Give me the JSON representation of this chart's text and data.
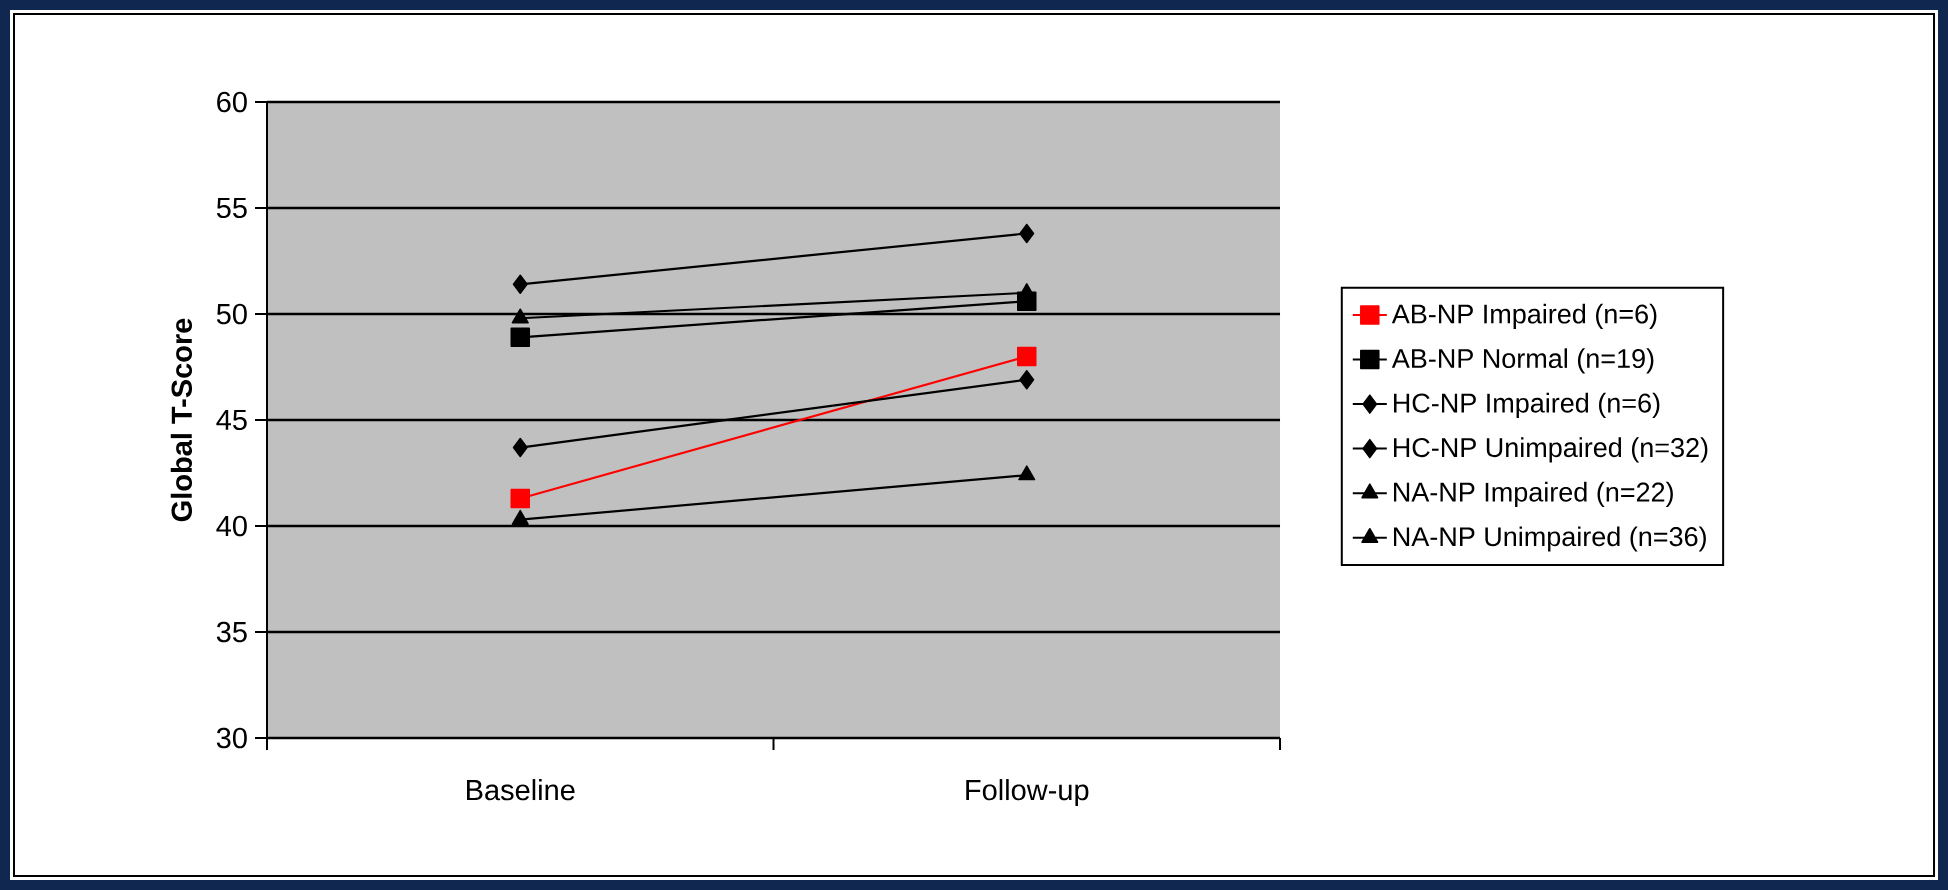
{
  "chart_data": {
    "type": "line",
    "ylabel": "Global T-Score",
    "categories": [
      "Baseline",
      "Follow-up"
    ],
    "series": [
      {
        "name": "AB-NP Impaired (n=6)",
        "color": "#ff0000",
        "marker": "square",
        "values": [
          41.3,
          48.0
        ]
      },
      {
        "name": "AB-NP Normal (n=19)",
        "color": "#000000",
        "marker": "square",
        "values": [
          48.9,
          50.6
        ]
      },
      {
        "name": "HC-NP Impaired (n=6)",
        "color": "#000000",
        "marker": "diamond",
        "values": [
          43.7,
          46.9
        ]
      },
      {
        "name": "HC-NP Unimpaired (n=32)",
        "color": "#000000",
        "marker": "diamond",
        "values": [
          51.4,
          53.8
        ]
      },
      {
        "name": "NA-NP Impaired (n=22)",
        "color": "#000000",
        "marker": "triangle",
        "values": [
          40.3,
          42.4
        ]
      },
      {
        "name": "NA-NP Unimpaired (n=36)",
        "color": "#000000",
        "marker": "triangle",
        "values": [
          49.8,
          51.0
        ]
      }
    ],
    "ylim": [
      30,
      60
    ],
    "yticks": [
      30,
      35,
      40,
      45,
      50,
      55,
      60
    ],
    "grid": "y",
    "legend": "right",
    "line_style": "solid"
  }
}
